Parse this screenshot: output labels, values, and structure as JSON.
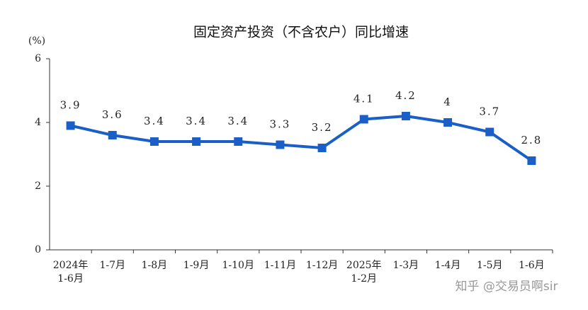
{
  "chart_data": {
    "type": "line",
    "title": "固定资产投资（不含农户）同比增速",
    "y_unit": "(%)",
    "categories": [
      "2024年\n1-6月",
      "1-7月",
      "1-8月",
      "1-9月",
      "1-10月",
      "1-11月",
      "1-12月",
      "2025年\n1-2月",
      "1-3月",
      "1-4月",
      "1-5月",
      "1-6月"
    ],
    "series": [
      {
        "name": "同比增速",
        "color": "#1a5fc8",
        "values": [
          3.9,
          3.6,
          3.4,
          3.4,
          3.4,
          3.3,
          3.2,
          4.1,
          4.2,
          4.0,
          3.7,
          2.8
        ]
      }
    ],
    "ylim": [
      0,
      6
    ],
    "yticks": [
      0,
      2,
      4,
      6
    ],
    "grid": false
  },
  "watermark": "知乎 @交易员啊sir"
}
